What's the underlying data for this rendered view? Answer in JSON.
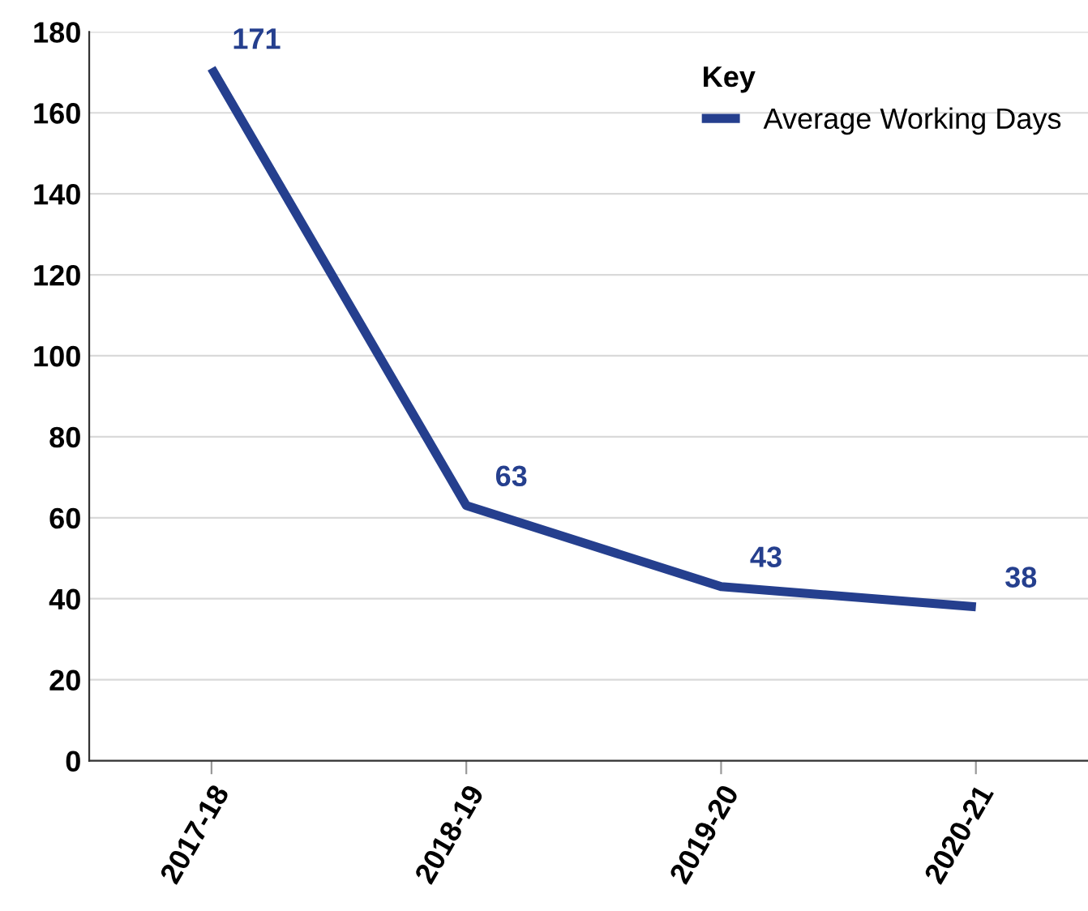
{
  "chart_data": {
    "type": "line",
    "categories": [
      "2017-18",
      "2018-19",
      "2019-20",
      "2020-21"
    ],
    "series": [
      {
        "name": "Average Working Days",
        "color": "#253f8e",
        "values": [
          171,
          63,
          43,
          38
        ]
      }
    ],
    "ylim": [
      0,
      180
    ],
    "yticks": [
      0,
      20,
      40,
      60,
      80,
      100,
      120,
      140,
      160,
      180
    ],
    "grid": "y",
    "legend": "top right",
    "legend_title": "Key",
    "data_labels": true,
    "marker": "none",
    "line_style": "solid"
  }
}
